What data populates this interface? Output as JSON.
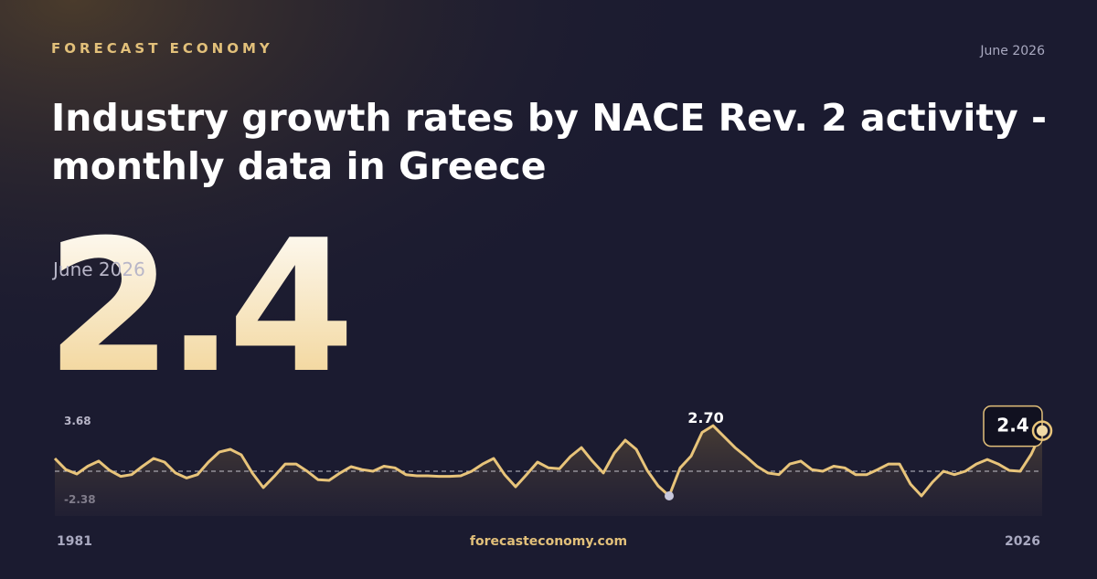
{
  "brand": "FORECAST ECONOMY",
  "date": "June 2026",
  "title_lines": [
    "Industry growth rates by NACE Rev. 2 activity -",
    "monthly data in Greece"
  ],
  "headline": {
    "value": "2.4",
    "date": "June 2026"
  },
  "footer": "forecasteconomy.com",
  "chart_data": {
    "type": "line",
    "color": "#e8c47a",
    "x": [
      1981,
      1981.5,
      1982,
      1982.5,
      1983,
      1983.5,
      1984,
      1984.5,
      1985,
      1985.5,
      1986,
      1986.5,
      1987,
      1987.5,
      1988,
      1988.5,
      1989,
      1989.5,
      1990,
      1990.5,
      1991,
      1991.5,
      1992,
      1992.5,
      1993,
      1993.5,
      1994,
      1994.5,
      1995,
      1995.5,
      1996,
      1996.5,
      1997,
      1997.5,
      1998,
      1998.5,
      1999,
      1999.5,
      2000,
      2000.5,
      2001,
      2001.5,
      2002,
      2002.5,
      2003,
      2003.5,
      2004,
      2004.5,
      2005,
      2005.5,
      2006,
      2006.5,
      2007,
      2007.5,
      2008,
      2008.5,
      2009,
      2009.5,
      2010,
      2010.5,
      2011,
      2011.5,
      2012,
      2012.5,
      2013,
      2013.5,
      2014,
      2014.5,
      2015,
      2015.5,
      2016,
      2016.5,
      2017,
      2017.5,
      2018,
      2018.5,
      2019,
      2019.5,
      2020,
      2020.5,
      2021,
      2021.5,
      2022,
      2022.5,
      2023,
      2023.5,
      2024,
      2024.5,
      2025,
      2025.5,
      2026
    ],
    "values": [
      0.76,
      0.1,
      -0.16,
      0.3,
      0.6,
      0.05,
      -0.3,
      -0.2,
      0.3,
      0.76,
      0.54,
      -0.1,
      -0.4,
      -0.2,
      0.54,
      1.14,
      1.3,
      0.97,
      -0.1,
      -0.97,
      -0.3,
      0.43,
      0.43,
      0,
      -0.5,
      -0.54,
      -0.1,
      0.27,
      0.1,
      0,
      0.3,
      0.2,
      -0.2,
      -0.27,
      -0.27,
      -0.3,
      -0.3,
      -0.27,
      0,
      0.43,
      0.76,
      -0.2,
      -0.92,
      -0.2,
      0.54,
      0.2,
      0.15,
      0.87,
      1.4,
      0.6,
      -0.1,
      1.08,
      1.84,
      1.3,
      0.05,
      -0.87,
      -1.46,
      0.2,
      0.9,
      2.3,
      2.7,
      2.05,
      1.4,
      0.87,
      0.3,
      -0.1,
      -0.2,
      0.43,
      0.6,
      0.1,
      0,
      0.3,
      0.2,
      -0.2,
      -0.2,
      0.1,
      0.43,
      0.43,
      -0.76,
      -1.46,
      -0.65,
      0,
      -0.2,
      0,
      0.43,
      0.7,
      0.43,
      0.05,
      0,
      1.0,
      2.4
    ],
    "value_labels": [
      null,
      null,
      null,
      null,
      null,
      null,
      null,
      null,
      null,
      null,
      null,
      null,
      null,
      null,
      null,
      null,
      null,
      null,
      null,
      null,
      null,
      null,
      null,
      null,
      null,
      null,
      null,
      null,
      null,
      null,
      null,
      null,
      null,
      null,
      null,
      null,
      null,
      null,
      null,
      null,
      null,
      null,
      null,
      null,
      null,
      null,
      null,
      null,
      null,
      null,
      null,
      null,
      null,
      null,
      null,
      null,
      null,
      null,
      null,
      null,
      "2.70",
      null,
      null,
      null,
      null,
      null,
      null,
      null,
      null,
      null,
      null,
      null,
      null,
      null,
      null,
      null,
      null,
      null,
      null,
      null,
      null,
      null,
      null,
      null,
      null,
      null,
      null,
      null,
      null,
      null,
      "2.4"
    ],
    "xlim": [
      1981,
      2026
    ],
    "xticks": [
      1981,
      2026
    ],
    "ylim": [
      -2.38,
      3.68
    ],
    "yticks": [
      3.68,
      -2.38
    ]
  }
}
